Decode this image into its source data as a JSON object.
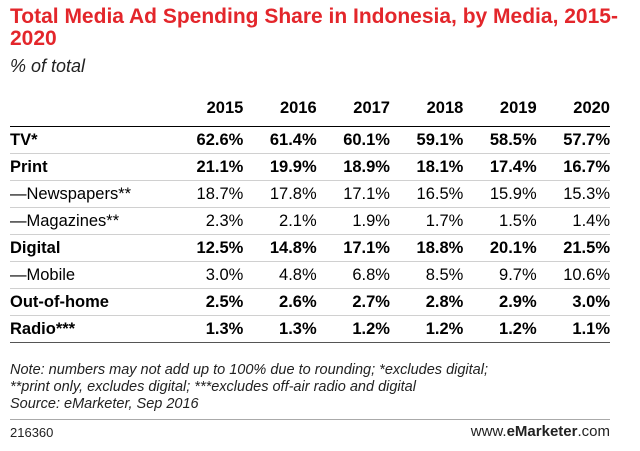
{
  "chart_data": {
    "type": "table",
    "title": "Total Media Ad Spending Share in Indonesia, by Media, 2015-2020",
    "subtitle": "% of total",
    "columns": [
      "2015",
      "2016",
      "2017",
      "2018",
      "2019",
      "2020"
    ],
    "rows": [
      {
        "label": "TV*",
        "bold": true,
        "values": [
          "62.6%",
          "61.4%",
          "60.1%",
          "59.1%",
          "58.5%",
          "57.7%"
        ]
      },
      {
        "label": "Print",
        "bold": true,
        "values": [
          "21.1%",
          "19.9%",
          "18.9%",
          "18.1%",
          "17.4%",
          "16.7%"
        ]
      },
      {
        "label": "—Newspapers**",
        "bold": false,
        "values": [
          "18.7%",
          "17.8%",
          "17.1%",
          "16.5%",
          "15.9%",
          "15.3%"
        ]
      },
      {
        "label": "—Magazines**",
        "bold": false,
        "values": [
          "2.3%",
          "2.1%",
          "1.9%",
          "1.7%",
          "1.5%",
          "1.4%"
        ]
      },
      {
        "label": "Digital",
        "bold": true,
        "values": [
          "12.5%",
          "14.8%",
          "17.1%",
          "18.8%",
          "20.1%",
          "21.5%"
        ]
      },
      {
        "label": "—Mobile",
        "bold": false,
        "values": [
          "3.0%",
          "4.8%",
          "6.8%",
          "8.5%",
          "9.7%",
          "10.6%"
        ]
      },
      {
        "label": "Out-of-home",
        "bold": true,
        "values": [
          "2.5%",
          "2.6%",
          "2.7%",
          "2.8%",
          "2.9%",
          "3.0%"
        ]
      },
      {
        "label": "Radio***",
        "bold": true,
        "values": [
          "1.3%",
          "1.3%",
          "1.2%",
          "1.2%",
          "1.2%",
          "1.1%"
        ]
      }
    ],
    "note_lines": [
      "Note: numbers may not add up to 100% due to rounding; *excludes digital;",
      "**print only, excludes digital; ***excludes off-air radio and digital",
      "Source: eMarketer, Sep 2016"
    ],
    "chart_id": "216360",
    "brand_prefix": "www.",
    "brand_name": "eMarketer",
    "brand_suffix": ".com"
  },
  "colors": {
    "title": "#e3262b"
  }
}
